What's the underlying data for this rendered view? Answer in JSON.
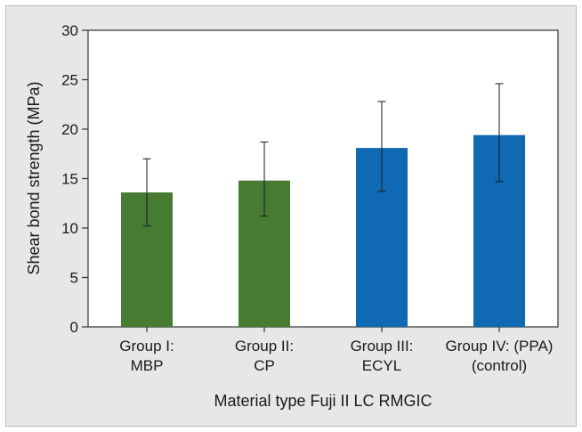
{
  "chart_data": {
    "type": "bar",
    "title": "",
    "xlabel": "Material type Fuji II LC RMGIC",
    "ylabel": "Shear bond strength (MPa)",
    "ylim": [
      0,
      30
    ],
    "yticks": [
      0,
      5,
      10,
      15,
      20,
      25,
      30
    ],
    "categories": [
      [
        "Group I:",
        "MBP"
      ],
      [
        "Group II:",
        "CP"
      ],
      [
        "Group III:",
        "ECYL"
      ],
      [
        "Group IV: (PPA)",
        "(control)"
      ]
    ],
    "values": [
      13.6,
      14.8,
      18.1,
      19.4
    ],
    "error_low": [
      10.2,
      11.2,
      13.7,
      14.7
    ],
    "error_high": [
      17.0,
      18.7,
      22.8,
      24.6
    ],
    "bar_colors": [
      "#467b31",
      "#467b31",
      "#1069b3",
      "#1069b3"
    ],
    "grid": false,
    "legend": "none"
  }
}
